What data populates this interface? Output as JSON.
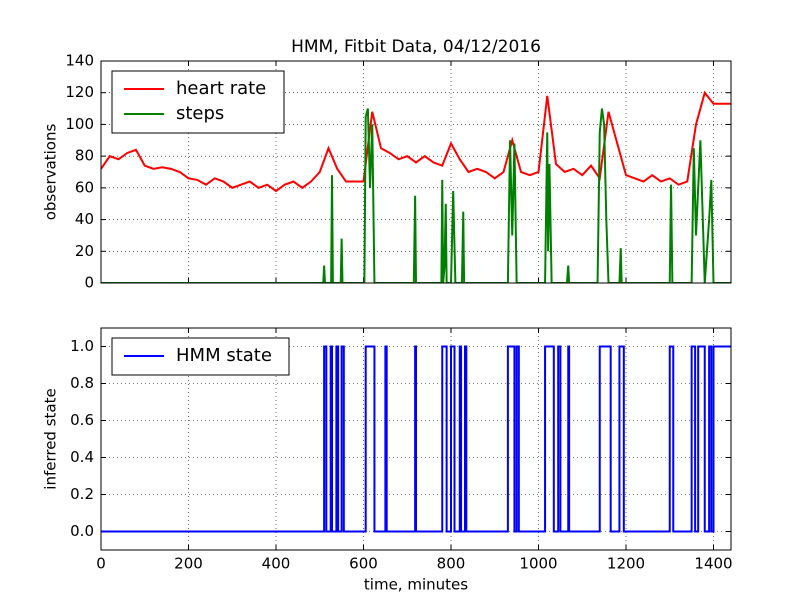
{
  "chart_data": [
    {
      "type": "line",
      "title": "HMM, Fitbit Data, 04/12/2016",
      "y_label": "observations",
      "xlim": [
        0,
        1440
      ],
      "xticks": [
        0,
        200,
        400,
        600,
        800,
        1000,
        1200,
        1400
      ],
      "ylim": [
        0,
        140
      ],
      "yticks": [
        0,
        20,
        40,
        60,
        80,
        100,
        120,
        140
      ],
      "grid": true,
      "legend": "upper left",
      "series": [
        {
          "name": "heart rate",
          "color": "#ff0000",
          "x": [
            0,
            20,
            40,
            60,
            80,
            100,
            120,
            140,
            160,
            180,
            200,
            220,
            240,
            260,
            280,
            300,
            320,
            340,
            360,
            380,
            400,
            420,
            440,
            460,
            480,
            500,
            520,
            540,
            560,
            580,
            600,
            620,
            640,
            660,
            680,
            700,
            720,
            740,
            760,
            780,
            800,
            820,
            840,
            860,
            880,
            900,
            920,
            940,
            960,
            980,
            1000,
            1020,
            1040,
            1060,
            1080,
            1100,
            1120,
            1140,
            1160,
            1180,
            1200,
            1220,
            1240,
            1260,
            1280,
            1300,
            1320,
            1340,
            1360,
            1380,
            1400,
            1420,
            1440
          ],
          "values": [
            72,
            80,
            78,
            82,
            84,
            74,
            72,
            73,
            72,
            70,
            66,
            65,
            62,
            66,
            64,
            60,
            62,
            64,
            60,
            62,
            58,
            62,
            64,
            60,
            64,
            70,
            85,
            72,
            64,
            64,
            64,
            108,
            85,
            82,
            78,
            80,
            76,
            80,
            76,
            74,
            88,
            78,
            70,
            72,
            70,
            66,
            70,
            90,
            70,
            68,
            70,
            118,
            75,
            70,
            72,
            68,
            74,
            66,
            108,
            88,
            68,
            66,
            64,
            68,
            64,
            66,
            62,
            64,
            100,
            120,
            113,
            113,
            113
          ]
        },
        {
          "name": "steps",
          "color": "#008000",
          "x": [
            0,
            508,
            510,
            512,
            526,
            528,
            530,
            548,
            550,
            552,
            602,
            605,
            610,
            615,
            620,
            625,
            715,
            718,
            720,
            778,
            780,
            782,
            785,
            788,
            790,
            800,
            805,
            810,
            825,
            828,
            830,
            930,
            935,
            940,
            945,
            950,
            952,
            1015,
            1020,
            1022,
            1025,
            1030,
            1065,
            1068,
            1070,
            1135,
            1140,
            1145,
            1150,
            1155,
            1160,
            1185,
            1188,
            1190,
            1300,
            1303,
            1306,
            1350,
            1355,
            1360,
            1370,
            1375,
            1380,
            1390,
            1395,
            1400,
            1440
          ],
          "values": [
            0,
            0,
            11,
            0,
            0,
            68,
            0,
            0,
            28,
            0,
            0,
            105,
            110,
            60,
            100,
            0,
            0,
            55,
            0,
            0,
            65,
            0,
            10,
            50,
            0,
            0,
            58,
            0,
            0,
            45,
            0,
            0,
            90,
            30,
            88,
            0,
            0,
            0,
            95,
            20,
            75,
            0,
            0,
            11,
            0,
            0,
            95,
            110,
            100,
            40,
            0,
            0,
            22,
            0,
            0,
            62,
            0,
            0,
            85,
            30,
            90,
            45,
            0,
            40,
            65,
            0,
            0
          ]
        }
      ]
    },
    {
      "type": "line",
      "x_label": "time, minutes",
      "y_label": "inferred state",
      "xlim": [
        0,
        1440
      ],
      "xticks": [
        0,
        200,
        400,
        600,
        800,
        1000,
        1200,
        1400
      ],
      "ylim": [
        -0.1,
        1.1
      ],
      "yticks": [
        {
          "value": 0,
          "label": "0.0"
        },
        0.2,
        0.4,
        0.6,
        0.8,
        {
          "value": 1,
          "label": "1.0"
        }
      ],
      "grid": true,
      "legend": "upper left",
      "series": [
        {
          "name": "HMM state",
          "color": "#0000ff",
          "x": [
            0,
            510,
            510,
            515,
            515,
            525,
            525,
            528,
            528,
            538,
            538,
            542,
            542,
            550,
            550,
            555,
            555,
            605,
            605,
            625,
            625,
            650,
            650,
            653,
            653,
            718,
            718,
            720,
            720,
            780,
            780,
            790,
            790,
            800,
            800,
            808,
            808,
            820,
            820,
            823,
            823,
            832,
            832,
            835,
            835,
            930,
            930,
            945,
            945,
            950,
            950,
            955,
            955,
            1015,
            1015,
            1035,
            1035,
            1045,
            1045,
            1050,
            1050,
            1068,
            1068,
            1070,
            1070,
            1140,
            1140,
            1165,
            1165,
            1185,
            1185,
            1195,
            1195,
            1300,
            1300,
            1308,
            1308,
            1350,
            1350,
            1358,
            1358,
            1365,
            1365,
            1380,
            1380,
            1390,
            1390,
            1395,
            1395,
            1400,
            1400,
            1440
          ],
          "values": [
            0,
            0,
            1,
            1,
            0,
            0,
            1,
            1,
            0,
            0,
            1,
            1,
            0,
            0,
            1,
            1,
            0,
            0,
            1,
            1,
            0,
            0,
            1,
            1,
            0,
            0,
            1,
            1,
            0,
            0,
            1,
            1,
            0,
            0,
            1,
            1,
            0,
            0,
            1,
            1,
            0,
            0,
            1,
            1,
            0,
            0,
            1,
            1,
            0,
            0,
            1,
            1,
            0,
            0,
            1,
            1,
            0,
            0,
            1,
            1,
            0,
            0,
            1,
            1,
            0,
            0,
            1,
            1,
            0,
            0,
            1,
            1,
            0,
            0,
            1,
            1,
            0,
            0,
            1,
            1,
            0,
            0,
            1,
            1,
            0,
            0,
            1,
            1,
            0,
            0,
            1,
            1
          ]
        }
      ]
    }
  ]
}
